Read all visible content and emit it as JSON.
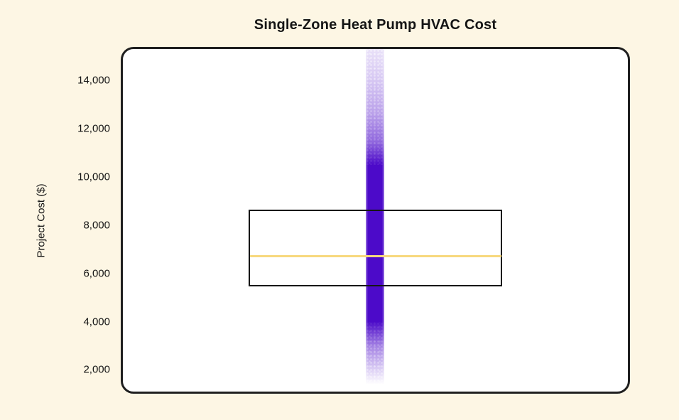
{
  "chart_data": {
    "type": "box",
    "title": "Single-Zone Heat Pump HVAC Cost",
    "xlabel": "",
    "ylabel": "Project Cost ($)",
    "yticks": [
      2000,
      4000,
      6000,
      8000,
      10000,
      12000,
      14000
    ],
    "ytick_labels": [
      "2,000",
      "4,000",
      "6,000",
      "8,000",
      "10,000",
      "12,000",
      "14,000"
    ],
    "ylim": [
      1100,
      15300
    ],
    "grid": false,
    "legend": false,
    "series": [
      {
        "name": "Single-Zone Heat Pump",
        "box": {
          "q1": 5450,
          "median": 6700,
          "q3": 8650
        },
        "strip_overlay": {
          "solid_value_range": [
            4000,
            10500
          ],
          "fade_value_range": [
            1400,
            15300
          ],
          "description": "dense jittered strip of project-cost points, opaque in the middle, speckled and fading at both ends"
        }
      }
    ],
    "colors": {
      "page_bg": "#FDF6E4",
      "panel_bg": "#FFFFFF",
      "box_border": "#161616",
      "strip": "#4C0AC9",
      "median": "#F7D87E",
      "text": "#151515"
    }
  }
}
